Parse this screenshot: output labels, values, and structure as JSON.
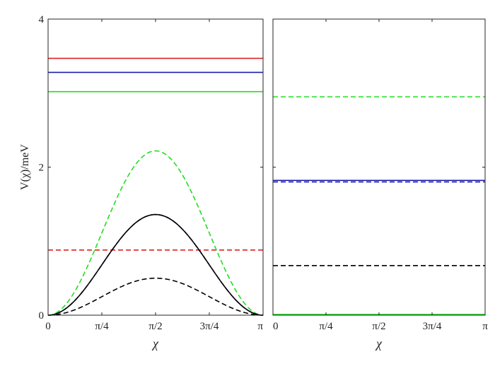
{
  "chart_data": [
    {
      "type": "line",
      "ylabel": "V(χ)/meV",
      "xlabel": "χ",
      "xlim": [
        0,
        3.14159
      ],
      "ylim": [
        0,
        4
      ],
      "xticks": [
        {
          "value": 0,
          "label": "0"
        },
        {
          "value": 0.785398,
          "label": "π/4"
        },
        {
          "value": 1.570796,
          "label": "π/2"
        },
        {
          "value": 2.356194,
          "label": "3π/4"
        },
        {
          "value": 3.14159,
          "label": "π"
        }
      ],
      "yticks": [
        {
          "value": 0,
          "label": "0"
        },
        {
          "value": 2,
          "label": "2"
        },
        {
          "value": 4,
          "label": "4"
        }
      ],
      "series": [
        {
          "color": "#e0201f",
          "style": "solid",
          "kind": "constant",
          "value": 3.47
        },
        {
          "color": "#1b1bb0",
          "style": "solid",
          "kind": "constant",
          "value": 3.28
        },
        {
          "color": "#22dd22",
          "style": "solid",
          "kind": "constant",
          "value": 3.02
        },
        {
          "color": "#e0201f",
          "style": "dashed",
          "kind": "constant",
          "value": 0.88
        },
        {
          "color": "#22dd22",
          "style": "dashed",
          "kind": "sin2",
          "amplitude": 2.22
        },
        {
          "color": "#1b1bb0",
          "style": "dashed",
          "kind": "sin2",
          "amplitude": 1.36
        },
        {
          "color": "#000000",
          "style": "solid",
          "kind": "sin2",
          "amplitude": 1.36
        },
        {
          "color": "#000000",
          "style": "dashed",
          "kind": "sin2",
          "amplitude": 0.5
        }
      ]
    },
    {
      "type": "line",
      "xlabel": "χ",
      "xlim": [
        0,
        3.14159
      ],
      "ylim": [
        0,
        4
      ],
      "xticks": [
        {
          "value": 0,
          "label": "0"
        },
        {
          "value": 0.785398,
          "label": "π/4"
        },
        {
          "value": 1.570796,
          "label": "π/2"
        },
        {
          "value": 2.356194,
          "label": "3π/4"
        },
        {
          "value": 3.14159,
          "label": "π"
        }
      ],
      "yticks": [
        {
          "value": 0,
          "label": ""
        },
        {
          "value": 2,
          "label": ""
        },
        {
          "value": 4,
          "label": ""
        }
      ],
      "series": [
        {
          "color": "#22dd22",
          "style": "dashed",
          "kind": "constant",
          "value": 2.95
        },
        {
          "color": "#1b1bb0",
          "style": "solid",
          "kind": "constant",
          "value": 1.82
        },
        {
          "color": "#1b1bb0",
          "style": "dashed",
          "kind": "constant",
          "value": 1.8
        },
        {
          "color": "#000000",
          "style": "dashed",
          "kind": "constant",
          "value": 0.67
        },
        {
          "color": "#22dd22",
          "style": "solid",
          "kind": "constant",
          "value": 0.01
        }
      ]
    }
  ]
}
